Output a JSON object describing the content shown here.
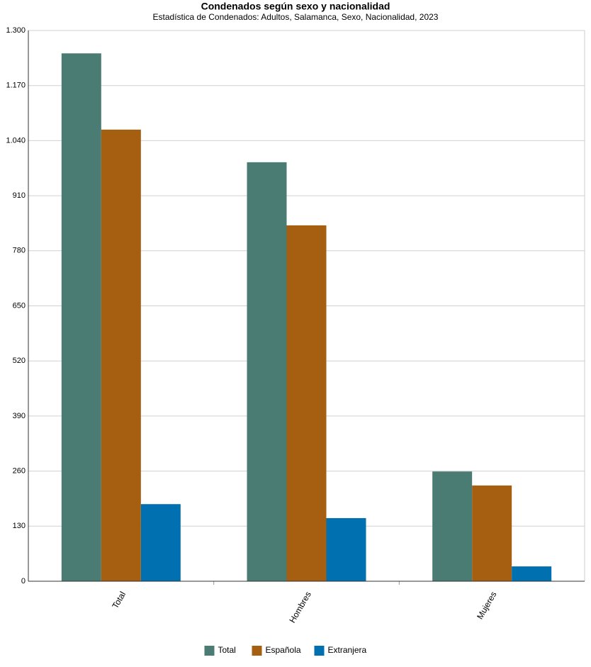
{
  "chart_data": {
    "type": "bar",
    "title": "Condenados según sexo y nacionalidad",
    "subtitle": "Estadística de Condenados: Adultos, Salamanca, Sexo, Nacionalidad, 2023",
    "categories": [
      "Total",
      "Hombres",
      "Mujeres"
    ],
    "series": [
      {
        "name": "Total",
        "color": "#4a7c74",
        "values": [
          1246,
          989,
          259
        ]
      },
      {
        "name": "Española",
        "color": "#a65e10",
        "values": [
          1066,
          840,
          226
        ]
      },
      {
        "name": "Extranjera",
        "color": "#0070b0",
        "values": [
          182,
          149,
          35
        ]
      }
    ],
    "ylim": [
      0,
      1300
    ],
    "yticks": [
      0,
      130,
      260,
      390,
      520,
      650,
      780,
      910,
      {
        "value": 1040,
        "label": "1.040"
      },
      {
        "value": 1170,
        "label": "1.170"
      },
      {
        "value": 1300,
        "label": "1.300"
      }
    ],
    "grid": true,
    "legend": "bottom"
  }
}
